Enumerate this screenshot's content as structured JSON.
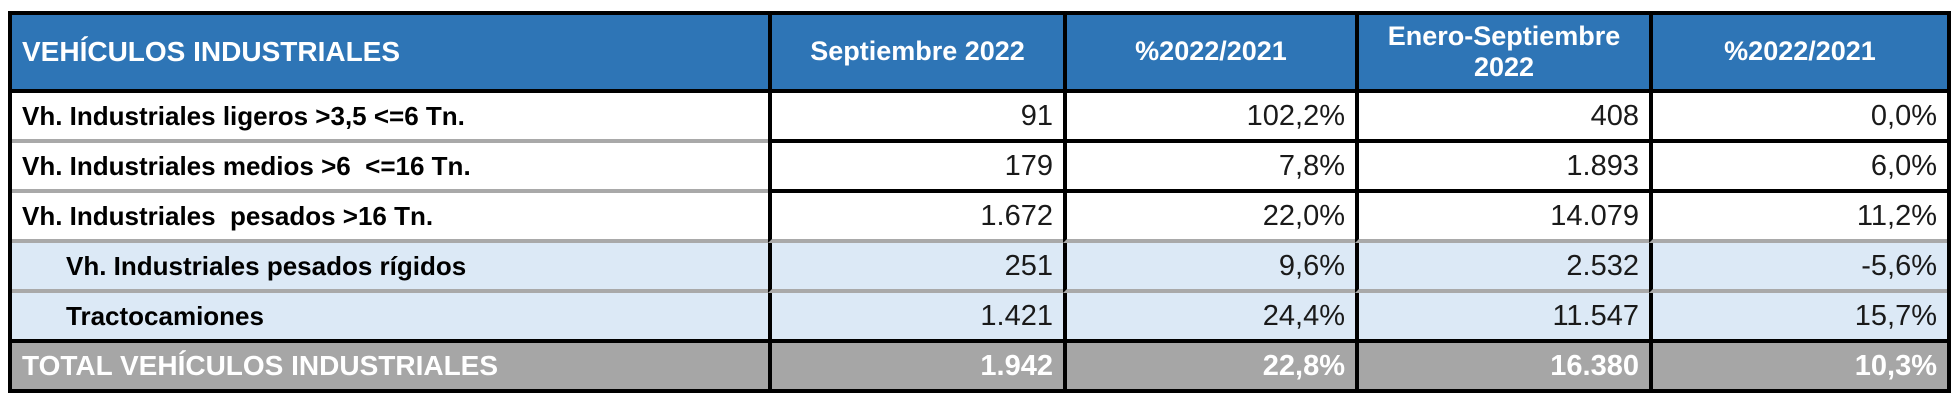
{
  "table": {
    "title": "VEHÍCULOS INDUSTRIALES",
    "columns": [
      "Septiembre 2022",
      "%2022/2021",
      "Enero-Septiembre 2022",
      "%2022/2021"
    ],
    "rows": [
      {
        "label": "Vh. Industriales ligeros >3,5 <=6 Tn.",
        "values": [
          "91",
          "102,2%",
          "408",
          "0,0%"
        ],
        "group": "main"
      },
      {
        "label": "Vh. Industriales medios >6  <=16 Tn.",
        "values": [
          "179",
          "7,8%",
          "1.893",
          "6,0%"
        ],
        "group": "main"
      },
      {
        "label": "Vh. Industriales  pesados >16 Tn.",
        "values": [
          "1.672",
          "22,0%",
          "14.079",
          "11,2%"
        ],
        "group": "main"
      },
      {
        "label": "Vh. Industriales pesados rígidos",
        "values": [
          "251",
          "9,6%",
          "2.532",
          "-5,6%"
        ],
        "group": "sub"
      },
      {
        "label": "Tractocamiones",
        "values": [
          "1.421",
          "24,4%",
          "11.547",
          "15,7%"
        ],
        "group": "sub"
      }
    ],
    "total": {
      "label": "TOTAL VEHÍCULOS INDUSTRIALES",
      "values": [
        "1.942",
        "22,8%",
        "16.380",
        "10,3%"
      ]
    }
  },
  "colors": {
    "header_blue": "#2E75B6",
    "subrow_blue": "#DCE9F6",
    "total_gray": "#A6A6A6",
    "separator_gray": "#A9A9A9",
    "border_black": "#000000"
  },
  "chart_data": {
    "type": "table",
    "title": "VEHÍCULOS INDUSTRIALES",
    "columns": [
      "VEHÍCULOS INDUSTRIALES",
      "Septiembre 2022",
      "%2022/2021",
      "Enero-Septiembre 2022",
      "%2022/2021"
    ],
    "rows": [
      [
        "Vh. Industriales ligeros >3,5 <=6 Tn.",
        91,
        "102,2%",
        408,
        "0,0%"
      ],
      [
        "Vh. Industriales medios >6 <=16 Tn.",
        179,
        "7,8%",
        1893,
        "6,0%"
      ],
      [
        "Vh. Industriales pesados >16 Tn.",
        1672,
        "22,0%",
        14079,
        "11,2%"
      ],
      [
        "Vh. Industriales pesados rígidos",
        251,
        "9,6%",
        2532,
        "-5,6%"
      ],
      [
        "Tractocamiones",
        1421,
        "24,4%",
        11547,
        "15,7%"
      ],
      [
        "TOTAL VEHÍCULOS INDUSTRIALES",
        1942,
        "22,8%",
        16380,
        "10,3%"
      ]
    ]
  }
}
